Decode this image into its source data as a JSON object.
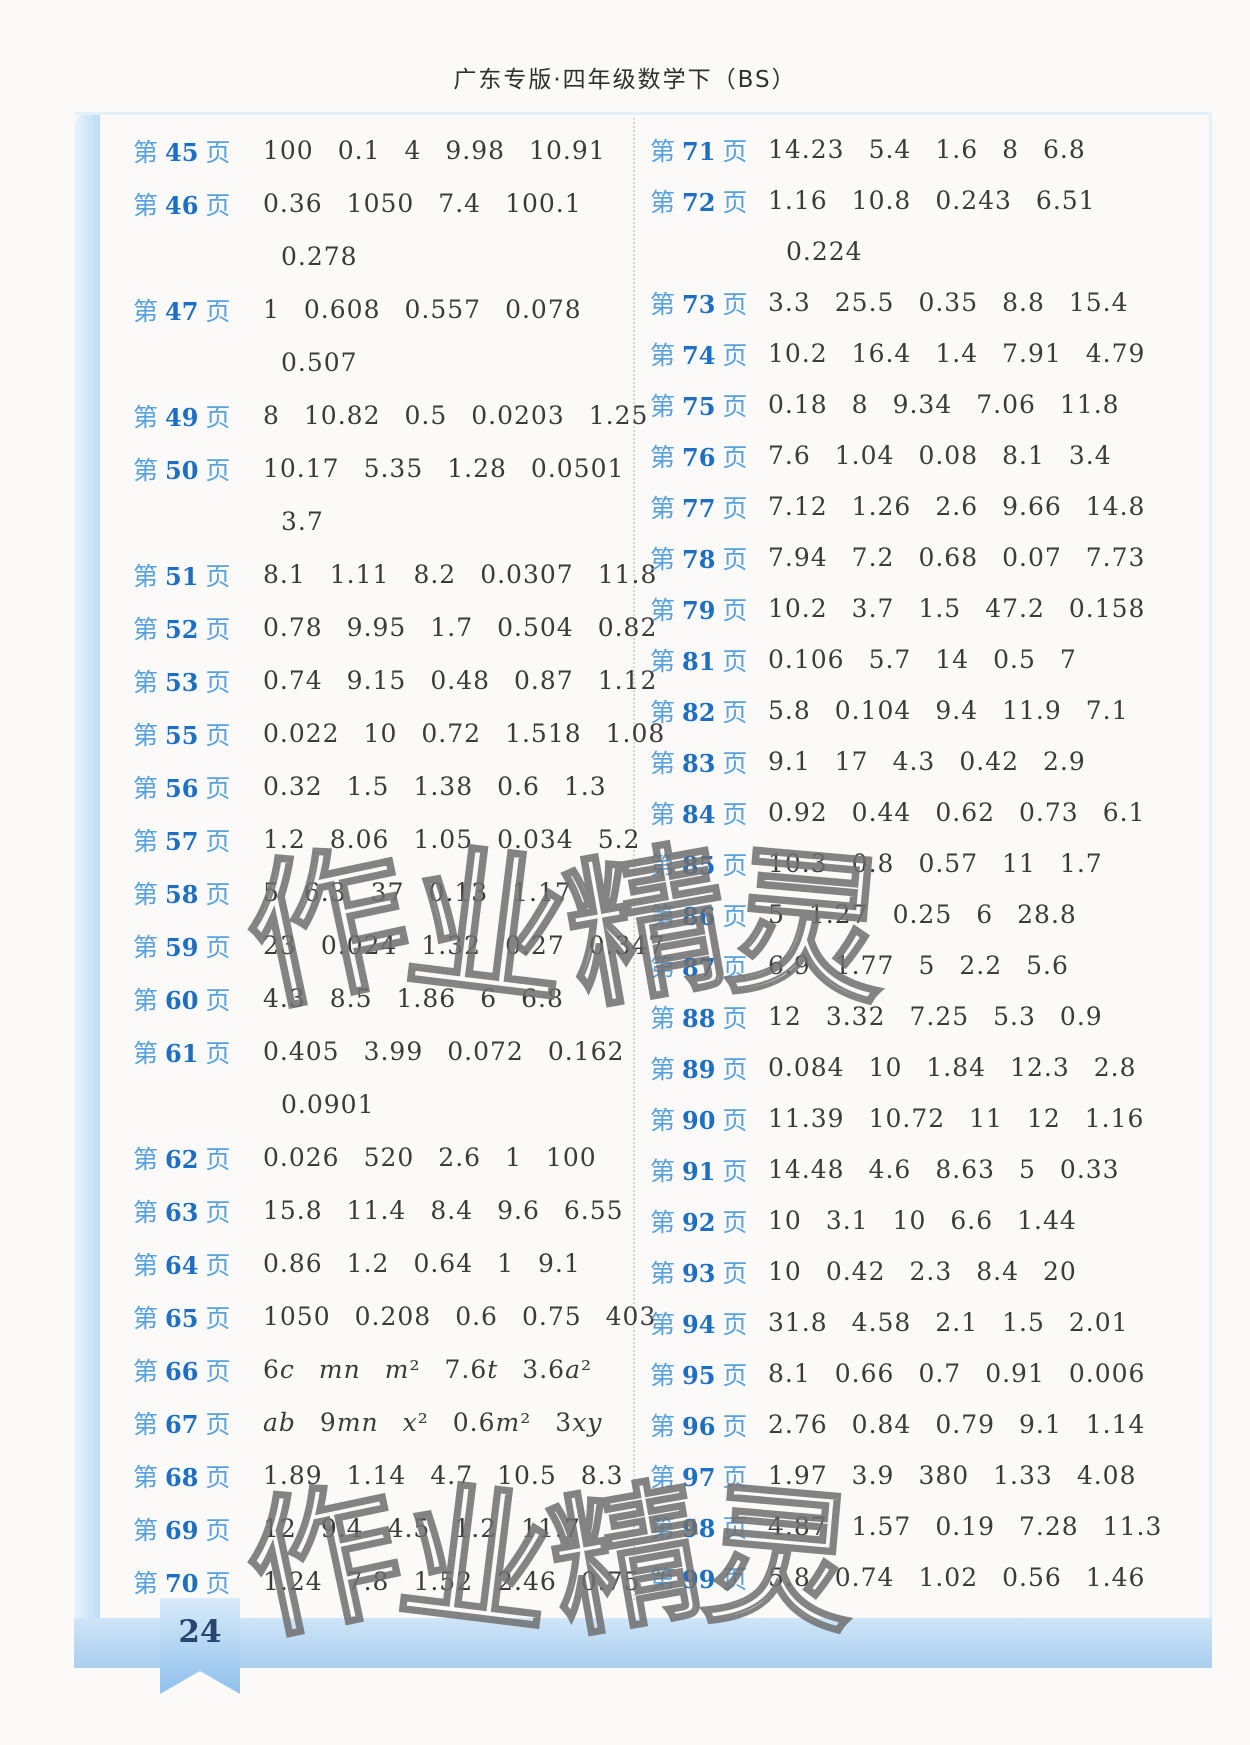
{
  "header": {
    "title": "广东专版·四年级数学下（BS）"
  },
  "watermark": {
    "text": "作业精灵"
  },
  "footer": {
    "page_number": "24"
  },
  "answer_key": {
    "label_prefix": "第",
    "label_suffix": "页",
    "left_column": [
      {
        "page": "45",
        "values": [
          "100",
          "0.1",
          "4",
          "9.98",
          "10.91"
        ]
      },
      {
        "page": "46",
        "values": [
          "0.36",
          "1050",
          "7.4",
          "100.1"
        ],
        "values2": [
          "0.278"
        ]
      },
      {
        "page": "47",
        "values": [
          "1",
          "0.608",
          "0.557",
          "0.078"
        ],
        "values2": [
          "0.507"
        ]
      },
      {
        "page": "49",
        "values": [
          "8",
          "10.82",
          "0.5",
          "0.0203",
          "1.25"
        ]
      },
      {
        "page": "50",
        "values": [
          "10.17",
          "5.35",
          "1.28",
          "0.0501"
        ],
        "values2": [
          "3.7"
        ]
      },
      {
        "page": "51",
        "values": [
          "8.1",
          "1.11",
          "8.2",
          "0.0307",
          "11.8"
        ]
      },
      {
        "page": "52",
        "values": [
          "0.78",
          "9.95",
          "1.7",
          "0.504",
          "0.82"
        ]
      },
      {
        "page": "53",
        "values": [
          "0.74",
          "9.15",
          "0.48",
          "0.87",
          "1.12"
        ]
      },
      {
        "page": "55",
        "values": [
          "0.022",
          "10",
          "0.72",
          "1.518",
          "1.08"
        ]
      },
      {
        "page": "56",
        "values": [
          "0.32",
          "1.5",
          "1.38",
          "0.6",
          "1.3"
        ]
      },
      {
        "page": "57",
        "values": [
          "1.2",
          "8.06",
          "1.05",
          "0.034",
          "5.2"
        ]
      },
      {
        "page": "58",
        "values": [
          "5",
          "6.3",
          "37",
          "0.13",
          "1.17"
        ]
      },
      {
        "page": "59",
        "values": [
          "23",
          "0.024",
          "1.32",
          "0.27",
          "0.347"
        ]
      },
      {
        "page": "60",
        "values": [
          "4.3",
          "8.5",
          "1.86",
          "6",
          "6.8"
        ]
      },
      {
        "page": "61",
        "values": [
          "0.405",
          "3.99",
          "0.072",
          "0.162"
        ],
        "values2": [
          "0.0901"
        ]
      },
      {
        "page": "62",
        "values": [
          "0.026",
          "520",
          "2.6",
          "1",
          "100"
        ]
      },
      {
        "page": "63",
        "values": [
          "15.8",
          "11.4",
          "8.4",
          "9.6",
          "6.55"
        ]
      },
      {
        "page": "64",
        "values": [
          "0.86",
          "1.2",
          "0.64",
          "1",
          "9.1"
        ]
      },
      {
        "page": "65",
        "values": [
          "1050",
          "0.208",
          "0.6",
          "0.75",
          "403"
        ]
      },
      {
        "page": "66",
        "values": [
          "6c",
          "mn",
          "m²",
          "7.6t",
          "3.6a²"
        ]
      },
      {
        "page": "67",
        "values": [
          "ab",
          "9mn",
          "x²",
          "0.6m²",
          "3xy"
        ]
      },
      {
        "page": "68",
        "values": [
          "1.89",
          "1.14",
          "4.7",
          "10.5",
          "8.3"
        ]
      },
      {
        "page": "69",
        "values": [
          "12",
          "9.4",
          "4.5",
          "1.2",
          "11.7"
        ]
      },
      {
        "page": "70",
        "values": [
          "1.24",
          "7.8",
          "1.52",
          "2.46",
          "0.75"
        ]
      }
    ],
    "right_column": [
      {
        "page": "71",
        "values": [
          "14.23",
          "5.4",
          "1.6",
          "8",
          "6.8"
        ]
      },
      {
        "page": "72",
        "values": [
          "1.16",
          "10.8",
          "0.243",
          "6.51"
        ],
        "values2": [
          "0.224"
        ]
      },
      {
        "page": "73",
        "values": [
          "3.3",
          "25.5",
          "0.35",
          "8.8",
          "15.4"
        ]
      },
      {
        "page": "74",
        "values": [
          "10.2",
          "16.4",
          "1.4",
          "7.91",
          "4.79"
        ]
      },
      {
        "page": "75",
        "values": [
          "0.18",
          "8",
          "9.34",
          "7.06",
          "11.8"
        ]
      },
      {
        "page": "76",
        "values": [
          "7.6",
          "1.04",
          "0.08",
          "8.1",
          "3.4"
        ]
      },
      {
        "page": "77",
        "values": [
          "7.12",
          "1.26",
          "2.6",
          "9.66",
          "14.8"
        ]
      },
      {
        "page": "78",
        "values": [
          "7.94",
          "7.2",
          "0.68",
          "0.07",
          "7.73"
        ]
      },
      {
        "page": "79",
        "values": [
          "10.2",
          "3.7",
          "1.5",
          "47.2",
          "0.158"
        ]
      },
      {
        "page": "81",
        "values": [
          "0.106",
          "5.7",
          "14",
          "0.5",
          "7"
        ]
      },
      {
        "page": "82",
        "values": [
          "5.8",
          "0.104",
          "9.4",
          "11.9",
          "7.1"
        ]
      },
      {
        "page": "83",
        "values": [
          "9.1",
          "17",
          "4.3",
          "0.42",
          "2.9"
        ]
      },
      {
        "page": "84",
        "values": [
          "0.92",
          "0.44",
          "0.62",
          "0.73",
          "6.1"
        ]
      },
      {
        "page": "85",
        "values": [
          "10.3",
          "0.8",
          "0.57",
          "11",
          "1.7"
        ]
      },
      {
        "page": "86",
        "values": [
          "5",
          "1.27",
          "0.25",
          "6",
          "28.8"
        ]
      },
      {
        "page": "87",
        "values": [
          "6.9",
          "1.77",
          "5",
          "2.2",
          "5.6"
        ]
      },
      {
        "page": "88",
        "values": [
          "12",
          "3.32",
          "7.25",
          "5.3",
          "0.9"
        ]
      },
      {
        "page": "89",
        "values": [
          "0.084",
          "10",
          "1.84",
          "12.3",
          "2.8"
        ]
      },
      {
        "page": "90",
        "values": [
          "11.39",
          "10.72",
          "11",
          "12",
          "1.16"
        ]
      },
      {
        "page": "91",
        "values": [
          "14.48",
          "4.6",
          "8.63",
          "5",
          "0.33"
        ]
      },
      {
        "page": "92",
        "values": [
          "10",
          "3.1",
          "10",
          "6.6",
          "1.44"
        ]
      },
      {
        "page": "93",
        "values": [
          "10",
          "0.42",
          "2.3",
          "8.4",
          "20"
        ]
      },
      {
        "page": "94",
        "values": [
          "31.8",
          "4.58",
          "2.1",
          "1.5",
          "2.01"
        ]
      },
      {
        "page": "95",
        "values": [
          "8.1",
          "0.66",
          "0.7",
          "0.91",
          "0.006"
        ]
      },
      {
        "page": "96",
        "values": [
          "2.76",
          "0.84",
          "0.79",
          "9.1",
          "1.14"
        ]
      },
      {
        "page": "97",
        "values": [
          "1.97",
          "3.9",
          "380",
          "1.33",
          "4.08"
        ]
      },
      {
        "page": "98",
        "values": [
          "4.87",
          "1.57",
          "0.19",
          "7.28",
          "11.3"
        ]
      },
      {
        "page": "99",
        "values": [
          "5.8",
          "0.74",
          "1.02",
          "0.56",
          "1.46"
        ]
      }
    ]
  },
  "colors": {
    "label_text": "#58a1dc",
    "label_number": "#1e6fc2",
    "value_text": "#3b3b3b",
    "frame_blue": "#bcdcf5",
    "ribbon_blue": "#8fc0ec",
    "page_number_text": "#27456f",
    "watermark_stroke": "#6f6f6f"
  }
}
